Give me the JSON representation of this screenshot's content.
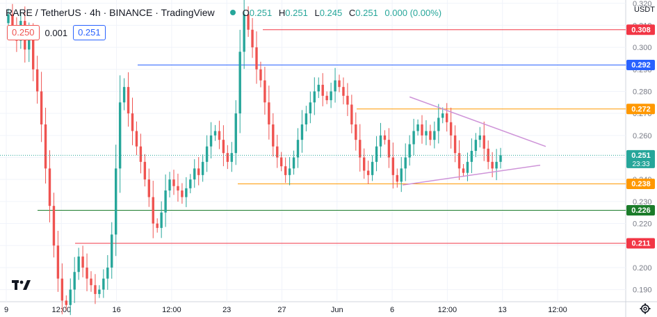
{
  "header": {
    "symbol": "RARE / TetherUS · 4h · BINANCE · TradingView",
    "o_label": "O",
    "o": "0.251",
    "h_label": "H",
    "h": "0.251",
    "l_label": "L",
    "l": "0.245",
    "c_label": "C",
    "c": "0.251",
    "change": "0.000 (0.00%)"
  },
  "order": {
    "sell": "0.250",
    "spread": "0.001",
    "buy": "0.251"
  },
  "currency": "USDT",
  "chart_data": {
    "type": "candlestick",
    "x_ticks": [
      "9",
      "12:00",
      "16",
      "12:00",
      "23",
      "27",
      "Jun",
      "6",
      "12:00",
      "13",
      "12:00"
    ],
    "y_ticks": [
      "0.190",
      "0.200",
      "0.210",
      "0.220",
      "0.230",
      "0.240",
      "0.250",
      "0.260",
      "0.270",
      "0.280",
      "0.290",
      "0.300",
      "0.310",
      "0.320"
    ],
    "ylim": [
      0.1845,
      0.3215
    ],
    "price_labels": [
      {
        "text": "0.308",
        "value": 0.308,
        "color": "#f23645"
      },
      {
        "text": "0.292",
        "value": 0.292,
        "color": "#2962ff"
      },
      {
        "text": "0.272",
        "value": 0.272,
        "color": "#ff9800"
      },
      {
        "text": "0.251",
        "value": 0.251,
        "color": "#26a69a",
        "sub": "23:33"
      },
      {
        "text": "0.238",
        "value": 0.238,
        "color": "#ff9800"
      },
      {
        "text": "0.226",
        "value": 0.226,
        "color": "#1b7c2a"
      },
      {
        "text": "0.211",
        "value": 0.211,
        "color": "#f23645"
      }
    ],
    "levels": [
      {
        "value": 0.308,
        "color": "#f23645",
        "from": 0.42,
        "to": 1.0
      },
      {
        "value": 0.292,
        "color": "#2962ff",
        "from": 0.22,
        "to": 1.0
      },
      {
        "value": 0.272,
        "color": "#ff9800",
        "from": 0.57,
        "to": 1.0
      },
      {
        "value": 0.238,
        "color": "#ff9800",
        "from": 0.38,
        "to": 1.0
      },
      {
        "value": 0.226,
        "color": "#1b7c2a",
        "from": 0.06,
        "to": 1.0
      },
      {
        "value": 0.211,
        "color": "#f23645",
        "from": 0.12,
        "to": 1.0
      }
    ],
    "current_price": 0.251,
    "triangle": {
      "upper": [
        0.2775,
        0.255
      ],
      "lower": [
        0.2375,
        0.2465
      ],
      "color": "#ce93d8"
    },
    "closes": [
      0.315,
      0.308,
      0.303,
      0.312,
      0.299,
      0.305,
      0.29,
      0.28,
      0.265,
      0.245,
      0.228,
      0.21,
      0.195,
      0.185,
      0.183,
      0.19,
      0.198,
      0.205,
      0.2,
      0.195,
      0.192,
      0.188,
      0.19,
      0.195,
      0.2,
      0.215,
      0.245,
      0.275,
      0.282,
      0.27,
      0.262,
      0.255,
      0.248,
      0.24,
      0.232,
      0.22,
      0.218,
      0.225,
      0.235,
      0.24,
      0.237,
      0.235,
      0.232,
      0.236,
      0.24,
      0.245,
      0.242,
      0.248,
      0.255,
      0.26,
      0.262,
      0.258,
      0.252,
      0.248,
      0.252,
      0.27,
      0.298,
      0.315,
      0.308,
      0.3,
      0.29,
      0.285,
      0.275,
      0.265,
      0.255,
      0.25,
      0.246,
      0.242,
      0.245,
      0.25,
      0.258,
      0.265,
      0.27,
      0.275,
      0.28,
      0.283,
      0.278,
      0.276,
      0.28,
      0.285,
      0.282,
      0.278,
      0.274,
      0.265,
      0.258,
      0.25,
      0.244,
      0.242,
      0.248,
      0.255,
      0.26,
      0.258,
      0.25,
      0.242,
      0.239,
      0.245,
      0.25,
      0.256,
      0.262,
      0.265,
      0.26,
      0.262,
      0.258,
      0.262,
      0.268,
      0.27,
      0.266,
      0.26,
      0.252,
      0.245,
      0.243,
      0.248,
      0.253,
      0.258,
      0.26,
      0.254,
      0.248,
      0.245,
      0.248,
      0.251
    ]
  }
}
